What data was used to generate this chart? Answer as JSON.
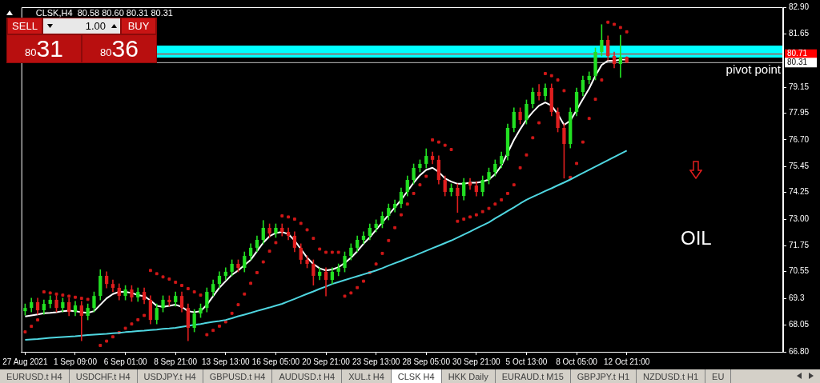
{
  "chart_data": {
    "type": "candlestick",
    "title": "CLSK,H4  80.58 80.60 80.31 80.31",
    "categories": [
      "27 Aug 2021",
      null,
      null,
      null,
      null,
      null,
      null,
      null,
      "1 Sep 09:00",
      null,
      null,
      null,
      null,
      null,
      null,
      null,
      "6 Sep 01:00",
      null,
      null,
      null,
      null,
      null,
      null,
      null,
      "8 Sep 21:00",
      null,
      null,
      null,
      null,
      null,
      null,
      null,
      "13 Sep 13:00",
      null,
      null,
      null,
      null,
      null,
      null,
      null,
      "16 Sep 05:00",
      null,
      null,
      null,
      null,
      null,
      null,
      null,
      "20 Sep 21:00",
      null,
      null,
      null,
      null,
      null,
      null,
      null,
      "23 Sep 13:00",
      null,
      null,
      null,
      null,
      null,
      null,
      null,
      "28 Sep 05:00",
      null,
      null,
      null,
      null,
      null,
      null,
      null,
      "30 Sep 21:00",
      null,
      null,
      null,
      null,
      null,
      null,
      null,
      "5 Oct 13:00",
      null,
      null,
      null,
      null,
      null,
      null,
      null,
      "8 Oct 05:00",
      null,
      null,
      null,
      null,
      null,
      null,
      null,
      "12 Oct 21:00"
    ],
    "ohlc": [
      [
        68.7,
        69.05,
        68.5,
        68.85
      ],
      [
        68.85,
        69.32,
        68.65,
        69.12
      ],
      [
        69.12,
        69.32,
        68.54,
        68.74
      ],
      [
        68.74,
        69.24,
        68.54,
        69.04
      ],
      [
        69.04,
        69.43,
        68.84,
        69.23
      ],
      [
        69.23,
        69.43,
        68.65,
        68.85
      ],
      [
        68.85,
        69.32,
        68.65,
        69.12
      ],
      [
        69.12,
        69.32,
        68.47,
        68.67
      ],
      [
        68.67,
        69.17,
        68.47,
        68.97
      ],
      [
        68.97,
        69.17,
        67.3,
        68.48
      ],
      [
        68.48,
        69.05,
        68.28,
        68.85
      ],
      [
        68.85,
        69.61,
        68.65,
        69.41
      ],
      [
        69.41,
        70.65,
        69.21,
        70.35
      ],
      [
        70.35,
        70.55,
        69.77,
        69.97
      ],
      [
        69.97,
        70.17,
        69.59,
        69.79
      ],
      [
        69.79,
        69.99,
        69.21,
        69.41
      ],
      [
        69.41,
        69.91,
        69.21,
        69.71
      ],
      [
        69.71,
        69.91,
        69.14,
        69.34
      ],
      [
        69.34,
        69.8,
        69.14,
        69.6
      ],
      [
        69.6,
        69.8,
        69.03,
        69.23
      ],
      [
        69.23,
        69.43,
        68.09,
        68.29
      ],
      [
        68.29,
        69.05,
        68.09,
        68.85
      ],
      [
        68.85,
        69.43,
        68.65,
        69.23
      ],
      [
        69.23,
        69.43,
        68.92,
        69.12
      ],
      [
        69.12,
        69.61,
        68.92,
        69.41
      ],
      [
        69.41,
        69.61,
        68.65,
        68.85
      ],
      [
        68.85,
        69.05,
        67.3,
        67.92
      ],
      [
        67.92,
        68.79,
        67.72,
        68.59
      ],
      [
        68.59,
        69.05,
        68.39,
        68.85
      ],
      [
        68.85,
        69.8,
        68.65,
        69.6
      ],
      [
        69.6,
        70.17,
        69.4,
        69.97
      ],
      [
        69.97,
        70.55,
        69.77,
        70.35
      ],
      [
        70.35,
        70.74,
        70.15,
        70.54
      ],
      [
        70.54,
        71.11,
        70.34,
        70.91
      ],
      [
        70.91,
        71.11,
        70.52,
        70.72
      ],
      [
        70.72,
        71.48,
        70.52,
        71.28
      ],
      [
        71.28,
        71.86,
        71.08,
        71.66
      ],
      [
        71.66,
        72.23,
        71.46,
        72.03
      ],
      [
        72.03,
        72.95,
        71.83,
        72.59
      ],
      [
        72.59,
        72.79,
        72.13,
        72.33
      ],
      [
        72.33,
        72.79,
        72.13,
        72.59
      ],
      [
        72.59,
        72.79,
        72.2,
        72.4
      ],
      [
        72.4,
        72.6,
        72.02,
        72.22
      ],
      [
        72.22,
        72.42,
        71.46,
        71.66
      ],
      [
        71.66,
        71.86,
        70.9,
        71.1
      ],
      [
        71.1,
        71.3,
        70.71,
        70.91
      ],
      [
        70.91,
        71.11,
        69.9,
        70.35
      ],
      [
        70.35,
        70.74,
        70.15,
        70.54
      ],
      [
        70.54,
        70.74,
        69.4,
        70.16
      ],
      [
        70.16,
        70.74,
        69.96,
        70.54
      ],
      [
        70.54,
        70.92,
        70.34,
        70.72
      ],
      [
        70.72,
        71.48,
        70.52,
        71.28
      ],
      [
        71.28,
        71.86,
        71.08,
        71.66
      ],
      [
        71.66,
        72.23,
        71.46,
        72.03
      ],
      [
        72.03,
        72.42,
        71.83,
        72.22
      ],
      [
        72.22,
        72.79,
        72.02,
        72.59
      ],
      [
        72.59,
        72.98,
        72.39,
        72.78
      ],
      [
        72.78,
        73.35,
        72.58,
        73.15
      ],
      [
        73.15,
        73.72,
        72.95,
        73.52
      ],
      [
        73.52,
        73.91,
        73.32,
        73.71
      ],
      [
        73.71,
        74.47,
        73.51,
        74.27
      ],
      [
        74.27,
        75.03,
        74.07,
        74.83
      ],
      [
        74.83,
        75.59,
        74.63,
        75.39
      ],
      [
        75.39,
        75.78,
        75.19,
        75.58
      ],
      [
        75.58,
        76.3,
        75.38,
        75.95
      ],
      [
        75.95,
        76.15,
        75.57,
        75.77
      ],
      [
        75.77,
        75.97,
        74.63,
        74.83
      ],
      [
        74.83,
        75.03,
        74.07,
        74.27
      ],
      [
        74.27,
        74.66,
        74.07,
        74.46
      ],
      [
        74.46,
        74.66,
        73.3,
        74.08
      ],
      [
        74.08,
        74.92,
        73.88,
        74.72
      ],
      [
        74.72,
        74.92,
        74.37,
        74.57
      ],
      [
        74.57,
        74.77,
        74.07,
        74.27
      ],
      [
        74.27,
        75.03,
        74.07,
        74.83
      ],
      [
        74.83,
        75.4,
        74.63,
        75.2
      ],
      [
        75.2,
        75.78,
        75.0,
        75.58
      ],
      [
        75.58,
        76.15,
        75.38,
        75.95
      ],
      [
        75.95,
        77.46,
        75.75,
        77.26
      ],
      [
        77.26,
        78.21,
        77.06,
        78.01
      ],
      [
        78.01,
        78.21,
        77.43,
        77.63
      ],
      [
        77.63,
        78.58,
        77.43,
        78.38
      ],
      [
        78.38,
        79.14,
        78.18,
        78.94
      ],
      [
        78.94,
        79.3,
        78.55,
        78.75
      ],
      [
        78.75,
        79.33,
        78.55,
        79.13
      ],
      [
        79.13,
        79.33,
        77.81,
        78.01
      ],
      [
        78.01,
        78.21,
        77.06,
        77.26
      ],
      [
        77.26,
        77.46,
        74.9,
        76.51
      ],
      [
        76.51,
        78.21,
        76.31,
        78.01
      ],
      [
        78.01,
        79.14,
        77.81,
        78.94
      ],
      [
        78.94,
        79.7,
        78.74,
        79.5
      ],
      [
        79.5,
        79.89,
        79.3,
        79.69
      ],
      [
        79.69,
        81.01,
        79.49,
        80.81
      ],
      [
        80.81,
        82.1,
        80.61,
        81.37
      ],
      [
        81.37,
        81.57,
        80.42,
        80.62
      ],
      [
        80.62,
        80.82,
        80.05,
        80.25
      ],
      [
        80.25,
        81.6,
        79.6,
        80.58
      ],
      [
        80.58,
        80.6,
        80.31,
        80.31
      ]
    ],
    "series": [
      {
        "type": "line",
        "color": "#ffffff",
        "marker": "none",
        "values": [
          68.45,
          68.5,
          68.55,
          68.6,
          68.62,
          68.65,
          68.7,
          68.72,
          68.7,
          68.65,
          68.62,
          68.7,
          69.0,
          69.3,
          69.5,
          69.6,
          69.6,
          69.55,
          69.45,
          69.4,
          69.2,
          68.95,
          68.9,
          68.95,
          69.0,
          68.9,
          68.7,
          68.65,
          68.7,
          69.0,
          69.4,
          69.8,
          70.1,
          70.4,
          70.6,
          70.85,
          71.1,
          71.5,
          71.9,
          72.2,
          72.35,
          72.4,
          72.3,
          72.0,
          71.6,
          71.2,
          70.9,
          70.7,
          70.6,
          70.65,
          70.75,
          70.95,
          71.2,
          71.5,
          71.85,
          72.15,
          72.5,
          72.85,
          73.2,
          73.55,
          73.9,
          74.3,
          74.7,
          75.05,
          75.3,
          75.4,
          75.2,
          74.9,
          74.75,
          74.65,
          74.65,
          74.7,
          74.7,
          74.75,
          74.85,
          75.1,
          75.5,
          76.1,
          76.7,
          77.2,
          77.65,
          78.0,
          78.3,
          78.45,
          78.3,
          77.9,
          77.4,
          77.6,
          78.1,
          78.6,
          79.1,
          79.7,
          80.2,
          80.4,
          80.4,
          80.45,
          80.45
        ]
      },
      {
        "type": "line",
        "color": "#4fd6e0",
        "marker": "none",
        "values": [
          67.36,
          67.38,
          67.4,
          67.43,
          67.45,
          67.47,
          67.49,
          67.51,
          67.53,
          67.56,
          67.58,
          67.6,
          67.62,
          67.64,
          67.67,
          67.69,
          67.72,
          67.74,
          67.77,
          67.79,
          67.82,
          67.84,
          67.87,
          67.89,
          67.92,
          67.97,
          68.01,
          68.06,
          68.1,
          68.15,
          68.2,
          68.24,
          68.29,
          68.37,
          68.46,
          68.54,
          68.62,
          68.71,
          68.79,
          68.87,
          68.96,
          69.04,
          69.16,
          69.27,
          69.39,
          69.51,
          69.62,
          69.74,
          69.85,
          69.97,
          70.06,
          70.15,
          70.24,
          70.33,
          70.42,
          70.51,
          70.6,
          70.71,
          70.83,
          70.94,
          71.05,
          71.17,
          71.28,
          71.4,
          71.52,
          71.64,
          71.76,
          71.88,
          72.0,
          72.14,
          72.28,
          72.42,
          72.57,
          72.71,
          72.85,
          73.03,
          73.2,
          73.38,
          73.55,
          73.73,
          73.9,
          74.04,
          74.17,
          74.31,
          74.44,
          74.58,
          74.71,
          74.85,
          75.0,
          75.15,
          75.3,
          75.45,
          75.6,
          75.75,
          75.9,
          76.05,
          76.2
        ]
      },
      {
        "type": "scatter",
        "color": "#d01818",
        "marker": "square",
        "values": [
          67.73,
          67.99,
          68.29,
          69.6,
          69.55,
          69.5,
          69.45,
          69.4,
          69.35,
          69.3,
          69.25,
          null,
          67.1,
          67.3,
          67.5,
          67.7,
          67.9,
          68.1,
          68.3,
          68.5,
          70.6,
          70.45,
          70.3,
          70.2,
          70.05,
          69.9,
          69.75,
          69.6,
          69.45,
          67.6,
          67.8,
          68.0,
          68.2,
          68.6,
          69.0,
          69.5,
          70.0,
          70.5,
          71.0,
          71.5,
          71.9,
          73.15,
          73.1,
          73.0,
          72.8,
          72.5,
          72.1,
          71.6,
          71.45,
          71.45,
          71.45,
          69.4,
          69.55,
          69.8,
          70.1,
          70.5,
          70.9,
          71.4,
          72.0,
          72.6,
          73.2,
          73.7,
          74.2,
          74.6,
          75.0,
          76.7,
          76.6,
          76.45,
          76.25,
          72.9,
          73.0,
          73.1,
          73.2,
          73.35,
          73.5,
          73.7,
          73.9,
          74.2,
          74.6,
          75.4,
          76.0,
          76.8,
          77.5,
          79.8,
          79.7,
          79.5,
          79.0,
          74.95,
          75.6,
          76.6,
          77.7,
          78.6,
          79.5,
          82.2,
          82.1,
          81.95,
          81.75
        ]
      }
    ],
    "ylim": [
      66.8,
      82.9
    ],
    "yticks": [
      {
        "value": 66.8,
        "label": "66.80"
      },
      68.05,
      69.3,
      70.55,
      71.75,
      {
        "value": 73.0,
        "label": "73.00"
      },
      74.25,
      75.45,
      {
        "value": 76.7,
        "label": "76.70"
      },
      77.95,
      79.15,
      81.65,
      {
        "value": 82.9,
        "label": "82.90"
      }
    ],
    "bands": [
      {
        "axis": "y",
        "from": 80.55,
        "to": 81.11,
        "color": "#00ffff"
      }
    ],
    "ref_lines": [
      {
        "axis": "y",
        "value": 80.71,
        "color": "#ff0000"
      },
      {
        "axis": "y",
        "value": 80.31,
        "label": "pivot point",
        "color": "#c0c0c0"
      }
    ],
    "annotations": [
      "80.71",
      "80.31",
      "SELL",
      "1.00",
      "BUY",
      "80",
      "31",
      "80",
      "36",
      "OIL",
      "EURUSD.t H4",
      "USDCHF.t H4",
      "USDJPY.t H4",
      "GBPUSD.t H4",
      "AUDUSD.t H4",
      "XUL.t H4",
      "CLSK H4",
      "HKK Daily",
      "EURAUD.t M15",
      "GBPJPY.t H1",
      "NZDUSD.t H1",
      "EU"
    ],
    "grid": false,
    "legend": false
  }
}
